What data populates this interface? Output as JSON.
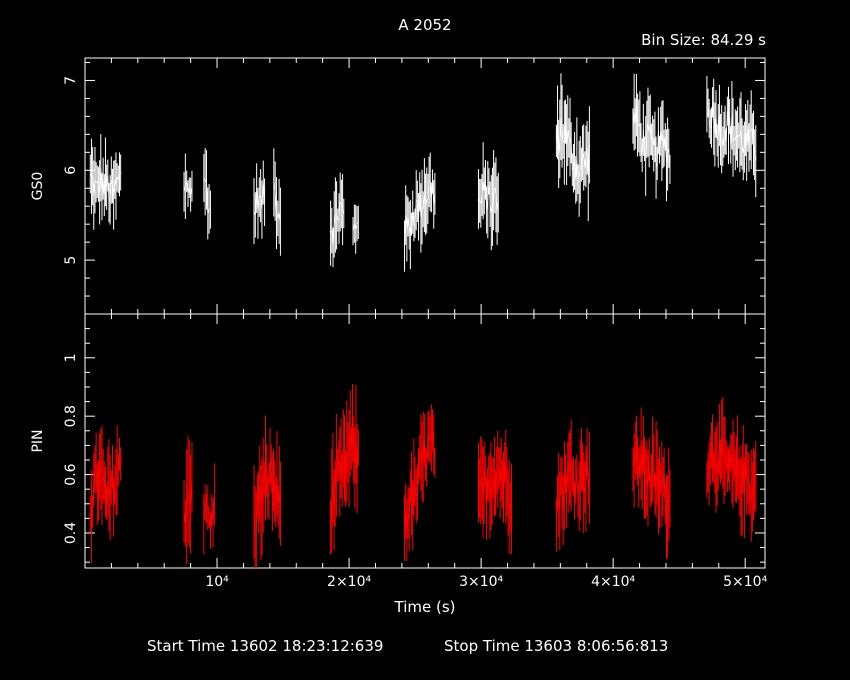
{
  "chart_data": [
    {
      "type": "line",
      "title": "A 2052",
      "subtitle": "Bin Size: 84.29 s",
      "ylabel": "GS0",
      "xlabel": "Time (s)",
      "xlim": [
        0,
        51500
      ],
      "ylim": [
        4.4,
        7.25
      ],
      "yticks": [
        5,
        6,
        7
      ],
      "xticks": [
        10000,
        20000,
        30000,
        40000,
        50000
      ],
      "color": "#ffffff",
      "series": [
        {
          "segments": [
            {
              "x0": 400,
              "x1": 2700,
              "base": [
                5.9,
                5.85,
                5.75,
                5.9,
                5.8,
                5.85,
                5.7,
                5.75,
                5.85,
                5.9
              ],
              "amp": 0.42
            },
            {
              "x0": 7500,
              "x1": 8100,
              "base": [
                5.8,
                5.9,
                5.75,
                5.85
              ],
              "amp": 0.38
            },
            {
              "x0": 9000,
              "x1": 9500,
              "base": [
                5.8,
                5.9,
                5.65,
                5.5
              ],
              "amp": 0.42
            },
            {
              "x0": 12800,
              "x1": 13600,
              "base": [
                5.55,
                5.7,
                5.6,
                5.75
              ],
              "amp": 0.38
            },
            {
              "x0": 14300,
              "x1": 14800,
              "base": [
                5.8,
                5.7,
                5.6,
                5.5
              ],
              "amp": 0.42
            },
            {
              "x0": 18600,
              "x1": 19600,
              "base": [
                5.4,
                5.3,
                5.5,
                5.6,
                5.45
              ],
              "amp": 0.42
            },
            {
              "x0": 20300,
              "x1": 20700,
              "base": [
                5.3,
                5.4,
                5.5
              ],
              "amp": 0.35
            },
            {
              "x0": 24200,
              "x1": 26500,
              "base": [
                5.3,
                5.4,
                5.55,
                5.6,
                5.7,
                5.8,
                5.75
              ],
              "amp": 0.42
            },
            {
              "x0": 29800,
              "x1": 31300,
              "base": [
                5.6,
                5.7,
                5.75,
                5.65,
                5.7,
                5.6
              ],
              "amp": 0.45
            },
            {
              "x0": 35700,
              "x1": 38200,
              "base": [
                6.3,
                6.5,
                6.4,
                6.2,
                6.1,
                6.0,
                6.1,
                6.15
              ],
              "amp": 0.5
            },
            {
              "x0": 41500,
              "x1": 44300,
              "base": [
                6.6,
                6.5,
                6.3,
                6.35,
                6.2,
                6.25,
                6.3,
                6.15
              ],
              "amp": 0.45
            },
            {
              "x0": 47100,
              "x1": 50800,
              "base": [
                6.7,
                6.6,
                6.45,
                6.5,
                6.4,
                6.35,
                6.3,
                6.25
              ],
              "amp": 0.45
            }
          ]
        }
      ]
    },
    {
      "type": "line",
      "ylabel": "PIN",
      "xlabel": "Time (s)",
      "xlim": [
        0,
        51500
      ],
      "ylim": [
        0.28,
        1.15
      ],
      "yticks": [
        0.4,
        0.6,
        0.8,
        1
      ],
      "ytick_labels": [
        "0.4",
        "0.6",
        "0.8",
        "1"
      ],
      "xticks": [
        10000,
        20000,
        30000,
        40000,
        50000
      ],
      "xtick_labels": [
        "10⁴",
        "2×10⁴",
        "3×10⁴",
        "4×10⁴",
        "5×10⁴"
      ],
      "color": "#ff0000",
      "series": [
        {
          "segments": [
            {
              "x0": 400,
              "x1": 2700,
              "base": [
                0.5,
                0.55,
                0.6,
                0.55,
                0.5,
                0.55,
                0.6,
                0.62
              ],
              "amp": 0.18
            },
            {
              "x0": 7500,
              "x1": 8100,
              "base": [
                0.5,
                0.52,
                0.55,
                0.6
              ],
              "amp": 0.2
            },
            {
              "x0": 9000,
              "x1": 9800,
              "base": [
                0.45,
                0.48,
                0.42,
                0.5
              ],
              "amp": 0.12
            },
            {
              "x0": 12800,
              "x1": 14800,
              "base": [
                0.45,
                0.5,
                0.55,
                0.6,
                0.55,
                0.5
              ],
              "amp": 0.18
            },
            {
              "x0": 18600,
              "x1": 20700,
              "base": [
                0.5,
                0.55,
                0.6,
                0.65,
                0.7,
                0.65
              ],
              "amp": 0.18
            },
            {
              "x0": 24200,
              "x1": 26500,
              "base": [
                0.45,
                0.5,
                0.55,
                0.65,
                0.7,
                0.68
              ],
              "amp": 0.16
            },
            {
              "x0": 29800,
              "x1": 32300,
              "base": [
                0.5,
                0.55,
                0.6,
                0.62,
                0.58,
                0.55
              ],
              "amp": 0.17
            },
            {
              "x0": 35700,
              "x1": 38200,
              "base": [
                0.5,
                0.55,
                0.6,
                0.58,
                0.6,
                0.62
              ],
              "amp": 0.17
            },
            {
              "x0": 41500,
              "x1": 44300,
              "base": [
                0.62,
                0.65,
                0.6,
                0.58,
                0.55,
                0.5
              ],
              "amp": 0.17
            },
            {
              "x0": 47100,
              "x1": 50800,
              "base": [
                0.65,
                0.68,
                0.62,
                0.6,
                0.58,
                0.56
              ],
              "amp": 0.16
            }
          ]
        }
      ]
    }
  ],
  "labels": {
    "title": "A 2052",
    "bin_size": "Bin Size: 84.29 s",
    "top_ylabel": "GS0",
    "bottom_ylabel": "PIN",
    "xlabel": "Time (s)",
    "start_time": "Start Time 13602 18:23:12:639",
    "stop_time": "Stop Time 13603  8:06:56:813",
    "top_yticks": [
      "5",
      "6",
      "7"
    ]
  }
}
